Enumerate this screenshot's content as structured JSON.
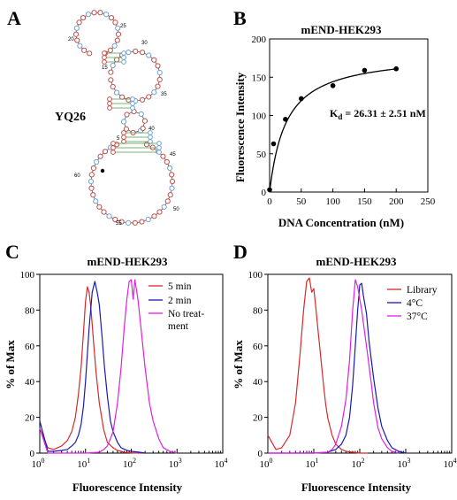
{
  "panels": {
    "A": {
      "letter": "A",
      "label": "YQ26",
      "numbers": [
        "15",
        "20",
        "25",
        "30",
        "35",
        "40",
        "45",
        "50",
        "55",
        "60",
        "5"
      ],
      "nucleotide_colors": {
        "pair": "#c0504d",
        "loop_a": "#c0504d",
        "loop_b": "#6fa0d8",
        "link": "#4a9a4a"
      }
    },
    "B": {
      "letter": "B"
    },
    "C": {
      "letter": "C"
    },
    "D": {
      "letter": "D"
    }
  },
  "chart_data": [
    {
      "id": "B",
      "type": "scatter",
      "title": "mEND-HEK293",
      "xlabel": "DNA Concentration (nM)",
      "ylabel": "Fluorescence Intensity",
      "xlim": [
        0,
        250
      ],
      "ylim": [
        0,
        200
      ],
      "xticks": [
        "0",
        "50",
        "100",
        "150",
        "200",
        "250"
      ],
      "yticks": [
        "0",
        "50",
        "100",
        "150",
        "200"
      ],
      "points": [
        {
          "x": 0,
          "y": 3
        },
        {
          "x": 6.25,
          "y": 63
        },
        {
          "x": 25,
          "y": 95
        },
        {
          "x": 50,
          "y": 122
        },
        {
          "x": 100,
          "y": 139
        },
        {
          "x": 150,
          "y": 159
        },
        {
          "x": 200,
          "y": 161
        }
      ],
      "fit": {
        "model": "Bmax*x/(Kd+x)",
        "Bmax": 182,
        "Kd": 26.31
      },
      "annotation_sub": "d",
      "annotation_K": "K",
      "annotation_rest": " = 26.31 ± 2.51 nM"
    },
    {
      "id": "C",
      "type": "line",
      "title": "mEND-HEK293",
      "xlabel": "Fluorescence Intensity",
      "ylabel": "% of Max",
      "x_scale": "log",
      "xlim": [
        1,
        10000
      ],
      "ylim": [
        0,
        100
      ],
      "xticks": [
        {
          "base": "10",
          "exp": "0"
        },
        {
          "base": "10",
          "exp": "1"
        },
        {
          "base": "10",
          "exp": "2"
        },
        {
          "base": "10",
          "exp": "3"
        },
        {
          "base": "10",
          "exp": "4"
        }
      ],
      "yticks": [
        "0",
        "20",
        "40",
        "60",
        "80",
        "100"
      ],
      "legend": [
        "5 min",
        "2 min",
        "No treat-",
        "ment"
      ],
      "series": [
        {
          "name": "5 min",
          "color": "#d42a2a",
          "x": [
            1,
            1.5,
            2,
            3,
            4,
            5,
            6,
            7,
            8,
            9,
            10,
            11,
            12,
            13,
            14,
            15,
            17,
            20,
            25,
            30,
            40,
            50,
            70,
            100,
            150,
            200
          ],
          "y": [
            14,
            3,
            2,
            4,
            7,
            12,
            20,
            33,
            48,
            67,
            85,
            93,
            90,
            82,
            72,
            62,
            45,
            28,
            13,
            6,
            3,
            1.5,
            0.5,
            0.2,
            0,
            0
          ]
        },
        {
          "name": "2 min",
          "color": "#1a1ab0",
          "x": [
            1,
            1.5,
            2,
            3,
            4,
            5,
            6,
            7,
            8,
            9,
            10,
            12,
            14,
            16,
            18,
            20,
            23,
            26,
            30,
            35,
            40,
            50,
            60,
            80,
            100,
            150,
            200
          ],
          "y": [
            18,
            1,
            1,
            1.5,
            2,
            4,
            6,
            10,
            16,
            26,
            40,
            70,
            90,
            96,
            90,
            83,
            65,
            48,
            32,
            18,
            12,
            6,
            3,
            1.5,
            1,
            0.5,
            0
          ]
        },
        {
          "name": "No treatment",
          "color": "#e020e0",
          "x": [
            1,
            1.5,
            2,
            5,
            10,
            20,
            25,
            30,
            35,
            40,
            50,
            60,
            70,
            80,
            90,
            100,
            110,
            120,
            140,
            160,
            200,
            250,
            300,
            400,
            500,
            700,
            1000
          ],
          "y": [
            14,
            0,
            0,
            0,
            0,
            0.5,
            2,
            4,
            8,
            12,
            28,
            48,
            70,
            86,
            96,
            97,
            86,
            97,
            86,
            72,
            48,
            28,
            18,
            8,
            3,
            1,
            0
          ]
        }
      ]
    },
    {
      "id": "D",
      "type": "line",
      "title": "mEND-HEK293",
      "xlabel": "Fluorescence Intensity",
      "ylabel": "% of Max",
      "x_scale": "log",
      "xlim": [
        1,
        10000
      ],
      "ylim": [
        0,
        100
      ],
      "xticks": [
        {
          "base": "10",
          "exp": "0"
        },
        {
          "base": "10",
          "exp": "1"
        },
        {
          "base": "10",
          "exp": "2"
        },
        {
          "base": "10",
          "exp": "3"
        },
        {
          "base": "10",
          "exp": "4"
        }
      ],
      "yticks": [
        "0",
        "20",
        "40",
        "60",
        "80",
        "100"
      ],
      "legend": [
        "Library",
        "4°C",
        "37°C"
      ],
      "series": [
        {
          "name": "Library",
          "color": "#d42a2a",
          "x": [
            1,
            1.5,
            2,
            3,
            4,
            5,
            6,
            7,
            8,
            9,
            10,
            11,
            12,
            14,
            16,
            18,
            20,
            25,
            30,
            40,
            50,
            70,
            100,
            150
          ],
          "y": [
            10,
            2,
            3,
            10,
            28,
            55,
            80,
            96,
            98,
            90,
            92,
            82,
            72,
            55,
            40,
            28,
            20,
            10,
            5,
            2,
            1,
            0.5,
            0,
            0
          ]
        },
        {
          "name": "4°C",
          "color": "#1a1ab0",
          "x": [
            1,
            5,
            10,
            20,
            30,
            40,
            50,
            60,
            70,
            80,
            90,
            100,
            110,
            120,
            140,
            160,
            200,
            250,
            300,
            400,
            500,
            700,
            1000
          ],
          "y": [
            0,
            0,
            0,
            0.5,
            2,
            5,
            10,
            20,
            38,
            60,
            80,
            94,
            95,
            88,
            78,
            62,
            42,
            25,
            15,
            7,
            3,
            1,
            0
          ]
        },
        {
          "name": "37°C",
          "color": "#e020e0",
          "x": [
            1,
            5,
            10,
            20,
            25,
            30,
            40,
            50,
            60,
            70,
            80,
            90,
            100,
            110,
            130,
            150,
            180,
            200,
            250,
            300,
            400,
            500,
            700
          ],
          "y": [
            0,
            0,
            0,
            0.5,
            2,
            5,
            15,
            30,
            52,
            80,
            97,
            93,
            86,
            80,
            66,
            54,
            38,
            28,
            14,
            8,
            3,
            1,
            0
          ]
        }
      ]
    }
  ]
}
